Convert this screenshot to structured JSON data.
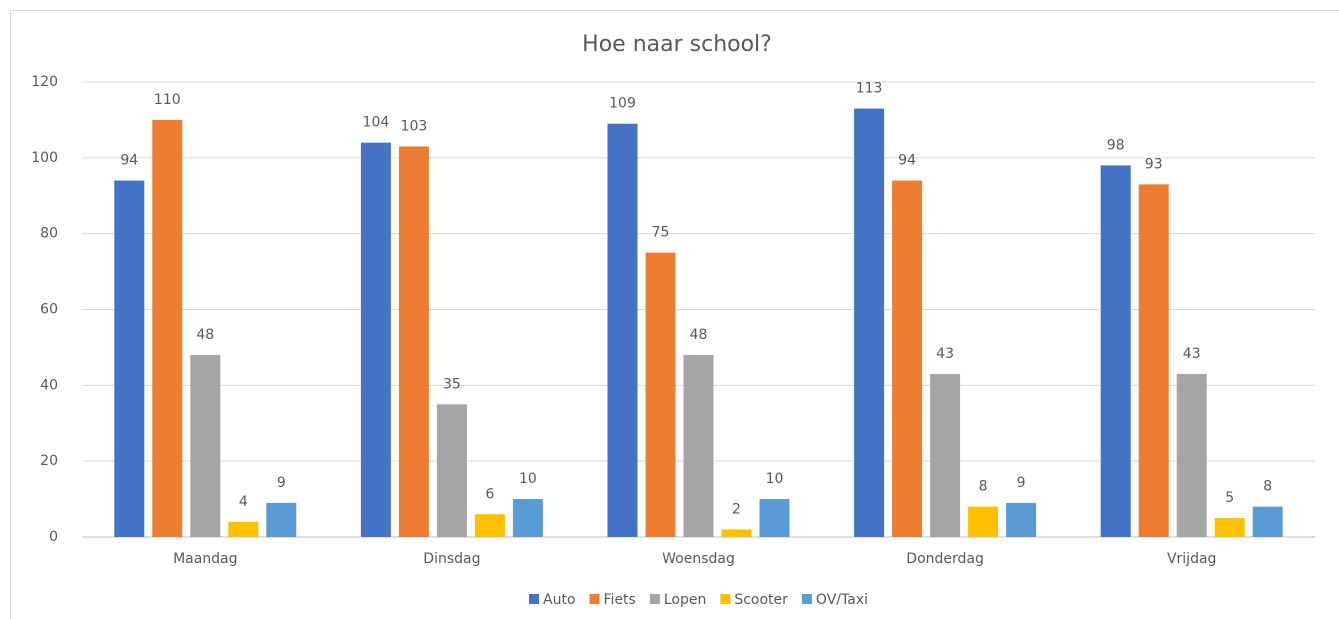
{
  "chart_data": {
    "type": "bar",
    "title": "Hoe naar school?",
    "categories": [
      "Maandag",
      "Dinsdag",
      "Woensdag",
      "Donderdag",
      "Vrijdag"
    ],
    "series": [
      {
        "name": "Auto",
        "color": "#4472c4",
        "values": [
          94,
          104,
          109,
          113,
          98
        ]
      },
      {
        "name": "Fiets",
        "color": "#ed7d31",
        "values": [
          110,
          103,
          75,
          94,
          93
        ]
      },
      {
        "name": "Lopen",
        "color": "#a5a5a5",
        "values": [
          48,
          35,
          48,
          43,
          43
        ]
      },
      {
        "name": "Scooter",
        "color": "#ffc000",
        "values": [
          4,
          6,
          2,
          8,
          5
        ]
      },
      {
        "name": "OV/Taxi",
        "color": "#5b9bd5",
        "values": [
          9,
          10,
          10,
          9,
          8
        ]
      }
    ],
    "ylim": [
      0,
      120
    ],
    "yticks": [
      0,
      20,
      40,
      60,
      80,
      100,
      120
    ],
    "grid": true,
    "legend": "bottom"
  }
}
